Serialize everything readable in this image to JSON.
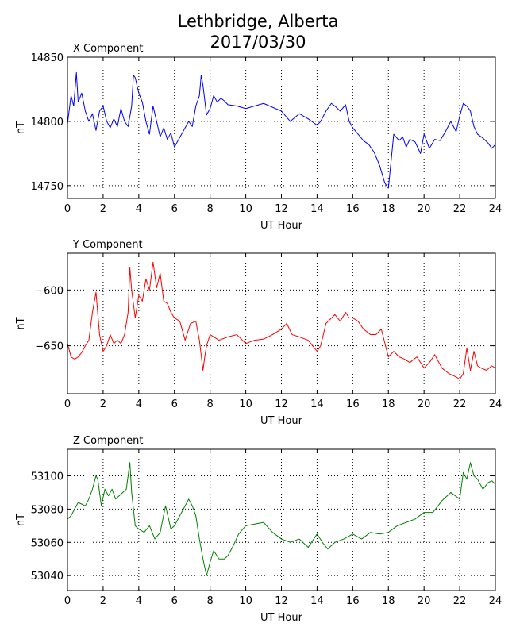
{
  "title_line1": "Lethbridge, Alberta",
  "title_line2": "2017/03/30",
  "colors": {
    "x": "#0000ff",
    "y": "#ff0000",
    "z": "#008000",
    "grid": "#000000"
  },
  "chart_data": [
    {
      "type": "line",
      "title": "X Component",
      "xlabel": "UT Hour",
      "ylabel": "nT",
      "xlim": [
        0,
        24
      ],
      "ylim": [
        14740,
        14850
      ],
      "xticks": [
        0,
        2,
        4,
        6,
        8,
        10,
        12,
        14,
        16,
        18,
        20,
        22,
        24
      ],
      "yticks": [
        14750,
        14800,
        14850
      ],
      "grid": true,
      "series": [
        {
          "color": "#0000ff",
          "x": [
            0,
            0.2,
            0.35,
            0.5,
            0.6,
            0.8,
            1.0,
            1.2,
            1.4,
            1.6,
            1.8,
            2.0,
            2.2,
            2.4,
            2.6,
            2.8,
            3.0,
            3.2,
            3.4,
            3.6,
            3.7,
            3.8,
            4.0,
            4.2,
            4.4,
            4.6,
            4.8,
            5.0,
            5.2,
            5.4,
            5.6,
            5.8,
            6.0,
            6.2,
            6.4,
            6.6,
            6.8,
            7.0,
            7.2,
            7.4,
            7.5,
            7.6,
            7.8,
            8.0,
            8.2,
            8.4,
            8.6,
            8.8,
            9.0,
            9.5,
            10.0,
            10.5,
            11.0,
            11.5,
            12.0,
            12.5,
            13.0,
            13.5,
            14.0,
            14.2,
            14.5,
            14.8,
            15.0,
            15.3,
            15.6,
            15.8,
            16.0,
            16.3,
            16.6,
            16.9,
            17.2,
            17.5,
            17.8,
            18.0,
            18.1,
            18.3,
            18.6,
            18.8,
            19.0,
            19.2,
            19.5,
            19.8,
            20.0,
            20.3,
            20.6,
            20.9,
            21.2,
            21.5,
            21.8,
            22.0,
            22.2,
            22.4,
            22.6,
            22.8,
            23.0,
            23.3,
            23.6,
            23.8,
            24.0
          ],
          "y": [
            14798,
            14820,
            14812,
            14838,
            14815,
            14822,
            14808,
            14800,
            14806,
            14793,
            14808,
            14812,
            14800,
            14795,
            14802,
            14796,
            14810,
            14800,
            14796,
            14812,
            14836,
            14834,
            14822,
            14815,
            14800,
            14790,
            14812,
            14800,
            14788,
            14795,
            14786,
            14791,
            14780,
            14785,
            14790,
            14795,
            14800,
            14796,
            14812,
            14820,
            14836,
            14828,
            14805,
            14810,
            14820,
            14815,
            14818,
            14816,
            14813,
            14812,
            14810,
            14812,
            14814,
            14811,
            14808,
            14800,
            14806,
            14802,
            14797,
            14800,
            14808,
            14814,
            14812,
            14808,
            14813,
            14800,
            14795,
            14790,
            14785,
            14782,
            14776,
            14766,
            14752,
            14748,
            14762,
            14790,
            14785,
            14788,
            14780,
            14786,
            14784,
            14775,
            14790,
            14779,
            14786,
            14785,
            14792,
            14800,
            14792,
            14804,
            14814,
            14812,
            14808,
            14796,
            14790,
            14787,
            14783,
            14779,
            14782
          ]
        }
      ]
    },
    {
      "type": "line",
      "title": "Y Component",
      "xlabel": "UT Hour",
      "ylabel": "nT",
      "xlim": [
        0,
        24
      ],
      "ylim": [
        -693,
        -567
      ],
      "xticks": [
        0,
        2,
        4,
        6,
        8,
        10,
        12,
        14,
        16,
        18,
        20,
        22,
        24
      ],
      "yticks": [
        -600,
        -650
      ],
      "ytick_labels": [
        "−600",
        "−650"
      ],
      "grid": true,
      "series": [
        {
          "color": "#ff0000",
          "x": [
            0,
            0.2,
            0.4,
            0.6,
            0.8,
            1.0,
            1.2,
            1.4,
            1.6,
            1.8,
            2.0,
            2.2,
            2.4,
            2.6,
            2.8,
            3.0,
            3.2,
            3.4,
            3.5,
            3.6,
            3.8,
            4.0,
            4.2,
            4.4,
            4.6,
            4.8,
            5.0,
            5.2,
            5.4,
            5.6,
            5.8,
            6.0,
            6.3,
            6.6,
            6.9,
            7.2,
            7.4,
            7.6,
            7.7,
            7.8,
            8.0,
            8.5,
            9.0,
            9.5,
            10.0,
            10.5,
            11.0,
            11.5,
            12.0,
            12.3,
            12.6,
            13.0,
            13.5,
            14.0,
            14.2,
            14.5,
            15.0,
            15.3,
            15.6,
            15.8,
            16.0,
            16.3,
            16.6,
            17.0,
            17.3,
            17.6,
            18.0,
            18.3,
            18.6,
            18.9,
            19.2,
            19.6,
            20.0,
            20.3,
            20.6,
            21.0,
            21.4,
            21.8,
            22.0,
            22.2,
            22.4,
            22.6,
            22.8,
            23.0,
            23.2,
            23.5,
            23.8,
            24.0
          ],
          "y": [
            -648,
            -660,
            -662,
            -660,
            -656,
            -650,
            -645,
            -620,
            -602,
            -640,
            -655,
            -650,
            -640,
            -648,
            -645,
            -648,
            -640,
            -620,
            -580,
            -600,
            -625,
            -605,
            -610,
            -590,
            -600,
            -575,
            -598,
            -585,
            -610,
            -612,
            -620,
            -625,
            -628,
            -645,
            -630,
            -628,
            -645,
            -672,
            -660,
            -650,
            -640,
            -645,
            -642,
            -640,
            -648,
            -645,
            -644,
            -640,
            -635,
            -630,
            -640,
            -642,
            -645,
            -655,
            -650,
            -630,
            -622,
            -628,
            -620,
            -625,
            -625,
            -628,
            -635,
            -640,
            -640,
            -635,
            -660,
            -655,
            -660,
            -662,
            -665,
            -660,
            -670,
            -665,
            -658,
            -670,
            -675,
            -678,
            -680,
            -675,
            -652,
            -672,
            -655,
            -668,
            -670,
            -672,
            -668,
            -670
          ]
        }
      ]
    },
    {
      "type": "line",
      "title": "Z Component",
      "xlabel": "UT Hour",
      "ylabel": "nT",
      "xlim": [
        0,
        24
      ],
      "ylim": [
        53031,
        53116
      ],
      "xticks": [
        0,
        2,
        4,
        6,
        8,
        10,
        12,
        14,
        16,
        18,
        20,
        22,
        24
      ],
      "yticks": [
        53040,
        53060,
        53080,
        53100
      ],
      "grid": true,
      "series": [
        {
          "color": "#008000",
          "x": [
            0,
            0.2,
            0.4,
            0.6,
            0.8,
            1.0,
            1.2,
            1.4,
            1.6,
            1.7,
            1.9,
            2.1,
            2.3,
            2.5,
            2.7,
            2.9,
            3.1,
            3.3,
            3.5,
            3.6,
            3.8,
            4.0,
            4.3,
            4.6,
            4.9,
            5.2,
            5.5,
            5.8,
            6.0,
            6.3,
            6.5,
            6.8,
            7.0,
            7.2,
            7.4,
            7.6,
            7.8,
            8.0,
            8.2,
            8.5,
            8.8,
            9.0,
            9.3,
            9.6,
            10.0,
            10.5,
            11.0,
            11.5,
            12.0,
            12.5,
            13.0,
            13.5,
            14.0,
            14.3,
            14.6,
            15.0,
            15.5,
            16.0,
            16.5,
            17.0,
            17.5,
            18.0,
            18.5,
            19.0,
            19.5,
            20.0,
            20.5,
            21.0,
            21.5,
            22.0,
            22.2,
            22.4,
            22.6,
            22.8,
            23.0,
            23.3,
            23.6,
            23.8,
            24.0
          ],
          "y": [
            53074,
            53076,
            53080,
            53084,
            53083,
            53082,
            53086,
            53092,
            53100,
            53098,
            53082,
            53092,
            53088,
            53092,
            53086,
            53088,
            53090,
            53092,
            53108,
            53090,
            53070,
            53068,
            53066,
            53070,
            53062,
            53066,
            53082,
            53068,
            53070,
            53076,
            53080,
            53086,
            53082,
            53076,
            53062,
            53050,
            53040,
            53048,
            53055,
            53050,
            53050,
            53052,
            53058,
            53065,
            53070,
            53071,
            53072,
            53066,
            53062,
            53060,
            53062,
            53057,
            53065,
            53060,
            53056,
            53060,
            53062,
            53065,
            53062,
            53066,
            53065,
            53066,
            53070,
            53072,
            53074,
            53078,
            53078,
            53085,
            53090,
            53086,
            53102,
            53098,
            53108,
            53100,
            53098,
            53092,
            53096,
            53097,
            53095
          ]
        }
      ]
    }
  ]
}
